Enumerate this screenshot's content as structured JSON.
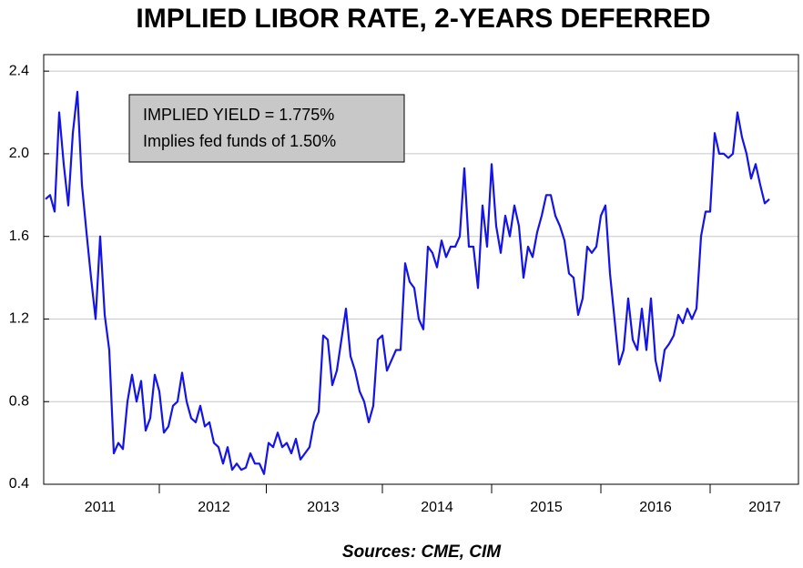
{
  "chart_data": {
    "type": "line",
    "title": "IMPLIED LIBOR RATE, 2-YEARS DEFERRED",
    "source": "Sources:  CME, CIM",
    "annotations": [
      "IMPLIED YIELD =  1.775%",
      "Implies fed funds of 1.50%"
    ],
    "categories": [
      null,
      null,
      null,
      null,
      null,
      null,
      null,
      null,
      null,
      null,
      null,
      null,
      "2011",
      null,
      null,
      null,
      null,
      null,
      null,
      null,
      null,
      null,
      null,
      null,
      null,
      null,
      null,
      null,
      null,
      null,
      null,
      null,
      null,
      null,
      null,
      null,
      null,
      "2012",
      null,
      null,
      null,
      null,
      null,
      null,
      null,
      null,
      null,
      null,
      null,
      null,
      null,
      null,
      null,
      null,
      null,
      null,
      null,
      null,
      null,
      null,
      null,
      "2013",
      null,
      null,
      null,
      null,
      null,
      null,
      null,
      null,
      null,
      null,
      null,
      null,
      null,
      null,
      null,
      null,
      null,
      null,
      null,
      null,
      null,
      null,
      null,
      null,
      "2014",
      null,
      null,
      null,
      null,
      null,
      null,
      null,
      null,
      null,
      null,
      null,
      null,
      null,
      null,
      null,
      null,
      null,
      null,
      null,
      null,
      null,
      null,
      null,
      "2015",
      null,
      null,
      null,
      null,
      null,
      null,
      null,
      null,
      null,
      null,
      null,
      null,
      null,
      null,
      null,
      null,
      null,
      null,
      null,
      null,
      null,
      null,
      null,
      "2016",
      null,
      null,
      null,
      null,
      null,
      null,
      null,
      null,
      null,
      null,
      null,
      null,
      null,
      null,
      null,
      null,
      null,
      null,
      null,
      null,
      null,
      null,
      null,
      "2017",
      null
    ],
    "series": [
      {
        "name": "Implied LIBOR",
        "color": "#1414e6",
        "values": [
          1.78,
          1.8,
          1.72,
          2.2,
          1.95,
          1.75,
          2.1,
          2.3,
          1.85,
          1.62,
          1.4,
          1.2,
          1.6,
          1.22,
          1.05,
          0.55,
          0.6,
          0.57,
          0.8,
          0.93,
          0.8,
          0.9,
          0.66,
          0.72,
          0.93,
          0.85,
          0.65,
          0.68,
          0.78,
          0.8,
          0.94,
          0.8,
          0.72,
          0.7,
          0.78,
          0.68,
          0.7,
          0.6,
          0.58,
          0.5,
          0.58,
          0.47,
          0.5,
          0.47,
          0.48,
          0.55,
          0.5,
          0.5,
          0.45,
          0.6,
          0.58,
          0.65,
          0.58,
          0.6,
          0.55,
          0.62,
          0.52,
          0.55,
          0.58,
          0.7,
          0.75,
          1.12,
          1.1,
          0.88,
          0.95,
          1.1,
          1.25,
          1.02,
          0.95,
          0.85,
          0.8,
          0.7,
          0.78,
          1.1,
          1.12,
          0.95,
          1.0,
          1.05,
          1.05,
          1.47,
          1.38,
          1.35,
          1.2,
          1.15,
          1.55,
          1.52,
          1.45,
          1.58,
          1.5,
          1.55,
          1.55,
          1.6,
          1.93,
          1.55,
          1.55,
          1.35,
          1.75,
          1.55,
          1.95,
          1.65,
          1.52,
          1.7,
          1.6,
          1.75,
          1.65,
          1.4,
          1.55,
          1.5,
          1.62,
          1.7,
          1.8,
          1.8,
          1.7,
          1.65,
          1.58,
          1.42,
          1.4,
          1.22,
          1.3,
          1.55,
          1.52,
          1.55,
          1.7,
          1.75,
          1.42,
          1.2,
          0.98,
          1.05,
          1.3,
          1.1,
          1.05,
          1.25,
          1.05,
          1.3,
          1.0,
          0.9,
          1.05,
          1.08,
          1.12,
          1.22,
          1.18,
          1.25,
          1.2,
          1.25,
          1.6,
          1.72,
          1.72,
          2.1,
          2.0,
          2.0,
          1.98,
          2.0,
          2.2,
          2.08,
          2.0,
          1.88,
          1.95,
          1.85,
          1.76,
          1.78
        ]
      }
    ],
    "ylim": [
      0.4,
      2.48
    ],
    "yticks": [
      0.4,
      0.8,
      1.2,
      1.6,
      {
        "value": 2.0,
        "label": "2.0"
      },
      2.4
    ],
    "grid": true
  }
}
